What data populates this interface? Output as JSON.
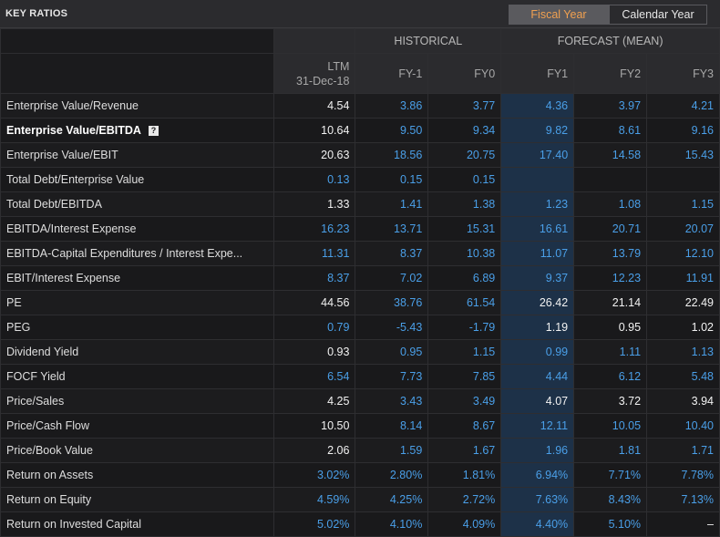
{
  "title": "KEY RATIOS",
  "toggle": {
    "fiscal_label": "Fiscal Year",
    "calendar_label": "Calendar Year",
    "selected": "Fiscal Year"
  },
  "groups": {
    "historical": "HISTORICAL",
    "forecast": "FORECAST (MEAN)"
  },
  "columns": {
    "ltm_top": "LTM",
    "ltm_date": "31-Dec-18",
    "fy_minus1": "FY-1",
    "fy0": "FY0",
    "fy1": "FY1",
    "fy2": "FY2",
    "fy3": "FY3"
  },
  "colors": {
    "accent_orange": "#f0a050",
    "value_blue": "#4a9fe8",
    "forecast_highlight": "#1d3148"
  },
  "rows": [
    {
      "label": "Enterprise Value/Revenue",
      "bold": false,
      "values": [
        {
          "v": "4.54",
          "c": "white"
        },
        {
          "v": "3.86",
          "c": "blue"
        },
        {
          "v": "3.77",
          "c": "blue"
        },
        {
          "v": "4.36",
          "c": "blue"
        },
        {
          "v": "3.97",
          "c": "blue"
        },
        {
          "v": "4.21",
          "c": "blue"
        }
      ]
    },
    {
      "label": "Enterprise Value/EBITDA",
      "bold": true,
      "icon": "?",
      "values": [
        {
          "v": "10.64",
          "c": "white"
        },
        {
          "v": "9.50",
          "c": "blue"
        },
        {
          "v": "9.34",
          "c": "blue"
        },
        {
          "v": "9.82",
          "c": "blue"
        },
        {
          "v": "8.61",
          "c": "blue"
        },
        {
          "v": "9.16",
          "c": "blue"
        }
      ]
    },
    {
      "label": "Enterprise Value/EBIT",
      "bold": false,
      "values": [
        {
          "v": "20.63",
          "c": "white"
        },
        {
          "v": "18.56",
          "c": "blue"
        },
        {
          "v": "20.75",
          "c": "blue"
        },
        {
          "v": "17.40",
          "c": "blue"
        },
        {
          "v": "14.58",
          "c": "blue"
        },
        {
          "v": "15.43",
          "c": "blue"
        }
      ]
    },
    {
      "label": "Total Debt/Enterprise Value",
      "bold": false,
      "values": [
        {
          "v": "0.13",
          "c": "blue"
        },
        {
          "v": "0.15",
          "c": "blue"
        },
        {
          "v": "0.15",
          "c": "blue"
        },
        {
          "v": "",
          "c": "blue"
        },
        {
          "v": "",
          "c": "blue"
        },
        {
          "v": "",
          "c": "blue"
        }
      ]
    },
    {
      "label": "Total Debt/EBITDA",
      "bold": false,
      "values": [
        {
          "v": "1.33",
          "c": "white"
        },
        {
          "v": "1.41",
          "c": "blue"
        },
        {
          "v": "1.38",
          "c": "blue"
        },
        {
          "v": "1.23",
          "c": "blue"
        },
        {
          "v": "1.08",
          "c": "blue"
        },
        {
          "v": "1.15",
          "c": "blue"
        }
      ]
    },
    {
      "label": "EBITDA/Interest Expense",
      "bold": false,
      "values": [
        {
          "v": "16.23",
          "c": "blue"
        },
        {
          "v": "13.71",
          "c": "blue"
        },
        {
          "v": "15.31",
          "c": "blue"
        },
        {
          "v": "16.61",
          "c": "blue"
        },
        {
          "v": "20.71",
          "c": "blue"
        },
        {
          "v": "20.07",
          "c": "blue"
        }
      ]
    },
    {
      "label": "EBITDA-Capital Expenditures / Interest Expe...",
      "bold": false,
      "values": [
        {
          "v": "11.31",
          "c": "blue"
        },
        {
          "v": "8.37",
          "c": "blue"
        },
        {
          "v": "10.38",
          "c": "blue"
        },
        {
          "v": "11.07",
          "c": "blue"
        },
        {
          "v": "13.79",
          "c": "blue"
        },
        {
          "v": "12.10",
          "c": "blue"
        }
      ]
    },
    {
      "label": "EBIT/Interest Expense",
      "bold": false,
      "values": [
        {
          "v": "8.37",
          "c": "blue"
        },
        {
          "v": "7.02",
          "c": "blue"
        },
        {
          "v": "6.89",
          "c": "blue"
        },
        {
          "v": "9.37",
          "c": "blue"
        },
        {
          "v": "12.23",
          "c": "blue"
        },
        {
          "v": "11.91",
          "c": "blue"
        }
      ]
    },
    {
      "label": "PE",
      "bold": false,
      "values": [
        {
          "v": "44.56",
          "c": "white"
        },
        {
          "v": "38.76",
          "c": "blue"
        },
        {
          "v": "61.54",
          "c": "blue"
        },
        {
          "v": "26.42",
          "c": "white"
        },
        {
          "v": "21.14",
          "c": "white"
        },
        {
          "v": "22.49",
          "c": "white"
        }
      ]
    },
    {
      "label": "PEG",
      "bold": false,
      "values": [
        {
          "v": "0.79",
          "c": "blue"
        },
        {
          "v": "-5.43",
          "c": "blue"
        },
        {
          "v": "-1.79",
          "c": "blue"
        },
        {
          "v": "1.19",
          "c": "white"
        },
        {
          "v": "0.95",
          "c": "white"
        },
        {
          "v": "1.02",
          "c": "white"
        }
      ]
    },
    {
      "label": "Dividend Yield",
      "bold": false,
      "values": [
        {
          "v": "0.93",
          "c": "white"
        },
        {
          "v": "0.95",
          "c": "blue"
        },
        {
          "v": "1.15",
          "c": "blue"
        },
        {
          "v": "0.99",
          "c": "blue"
        },
        {
          "v": "1.11",
          "c": "blue"
        },
        {
          "v": "1.13",
          "c": "blue"
        }
      ]
    },
    {
      "label": "FOCF Yield",
      "bold": false,
      "values": [
        {
          "v": "6.54",
          "c": "blue"
        },
        {
          "v": "7.73",
          "c": "blue"
        },
        {
          "v": "7.85",
          "c": "blue"
        },
        {
          "v": "4.44",
          "c": "blue"
        },
        {
          "v": "6.12",
          "c": "blue"
        },
        {
          "v": "5.48",
          "c": "blue"
        }
      ]
    },
    {
      "label": "Price/Sales",
      "bold": false,
      "values": [
        {
          "v": "4.25",
          "c": "white"
        },
        {
          "v": "3.43",
          "c": "blue"
        },
        {
          "v": "3.49",
          "c": "blue"
        },
        {
          "v": "4.07",
          "c": "white"
        },
        {
          "v": "3.72",
          "c": "white"
        },
        {
          "v": "3.94",
          "c": "white"
        }
      ]
    },
    {
      "label": "Price/Cash Flow",
      "bold": false,
      "values": [
        {
          "v": "10.50",
          "c": "white"
        },
        {
          "v": "8.14",
          "c": "blue"
        },
        {
          "v": "8.67",
          "c": "blue"
        },
        {
          "v": "12.11",
          "c": "blue"
        },
        {
          "v": "10.05",
          "c": "blue"
        },
        {
          "v": "10.40",
          "c": "blue"
        }
      ]
    },
    {
      "label": "Price/Book Value",
      "bold": false,
      "values": [
        {
          "v": "2.06",
          "c": "white"
        },
        {
          "v": "1.59",
          "c": "blue"
        },
        {
          "v": "1.67",
          "c": "blue"
        },
        {
          "v": "1.96",
          "c": "blue"
        },
        {
          "v": "1.81",
          "c": "blue"
        },
        {
          "v": "1.71",
          "c": "blue"
        }
      ]
    },
    {
      "label": "Return on Assets",
      "bold": false,
      "values": [
        {
          "v": "3.02%",
          "c": "blue"
        },
        {
          "v": "2.80%",
          "c": "blue"
        },
        {
          "v": "1.81%",
          "c": "blue"
        },
        {
          "v": "6.94%",
          "c": "blue"
        },
        {
          "v": "7.71%",
          "c": "blue"
        },
        {
          "v": "7.78%",
          "c": "blue"
        }
      ]
    },
    {
      "label": "Return on Equity",
      "bold": false,
      "values": [
        {
          "v": "4.59%",
          "c": "blue"
        },
        {
          "v": "4.25%",
          "c": "blue"
        },
        {
          "v": "2.72%",
          "c": "blue"
        },
        {
          "v": "7.63%",
          "c": "blue"
        },
        {
          "v": "8.43%",
          "c": "blue"
        },
        {
          "v": "7.13%",
          "c": "blue"
        }
      ]
    },
    {
      "label": "Return on Invested Capital",
      "bold": false,
      "values": [
        {
          "v": "5.02%",
          "c": "blue"
        },
        {
          "v": "4.10%",
          "c": "blue"
        },
        {
          "v": "4.09%",
          "c": "blue"
        },
        {
          "v": "4.40%",
          "c": "blue"
        },
        {
          "v": "5.10%",
          "c": "blue"
        },
        {
          "v": "–",
          "c": "white"
        }
      ]
    }
  ]
}
